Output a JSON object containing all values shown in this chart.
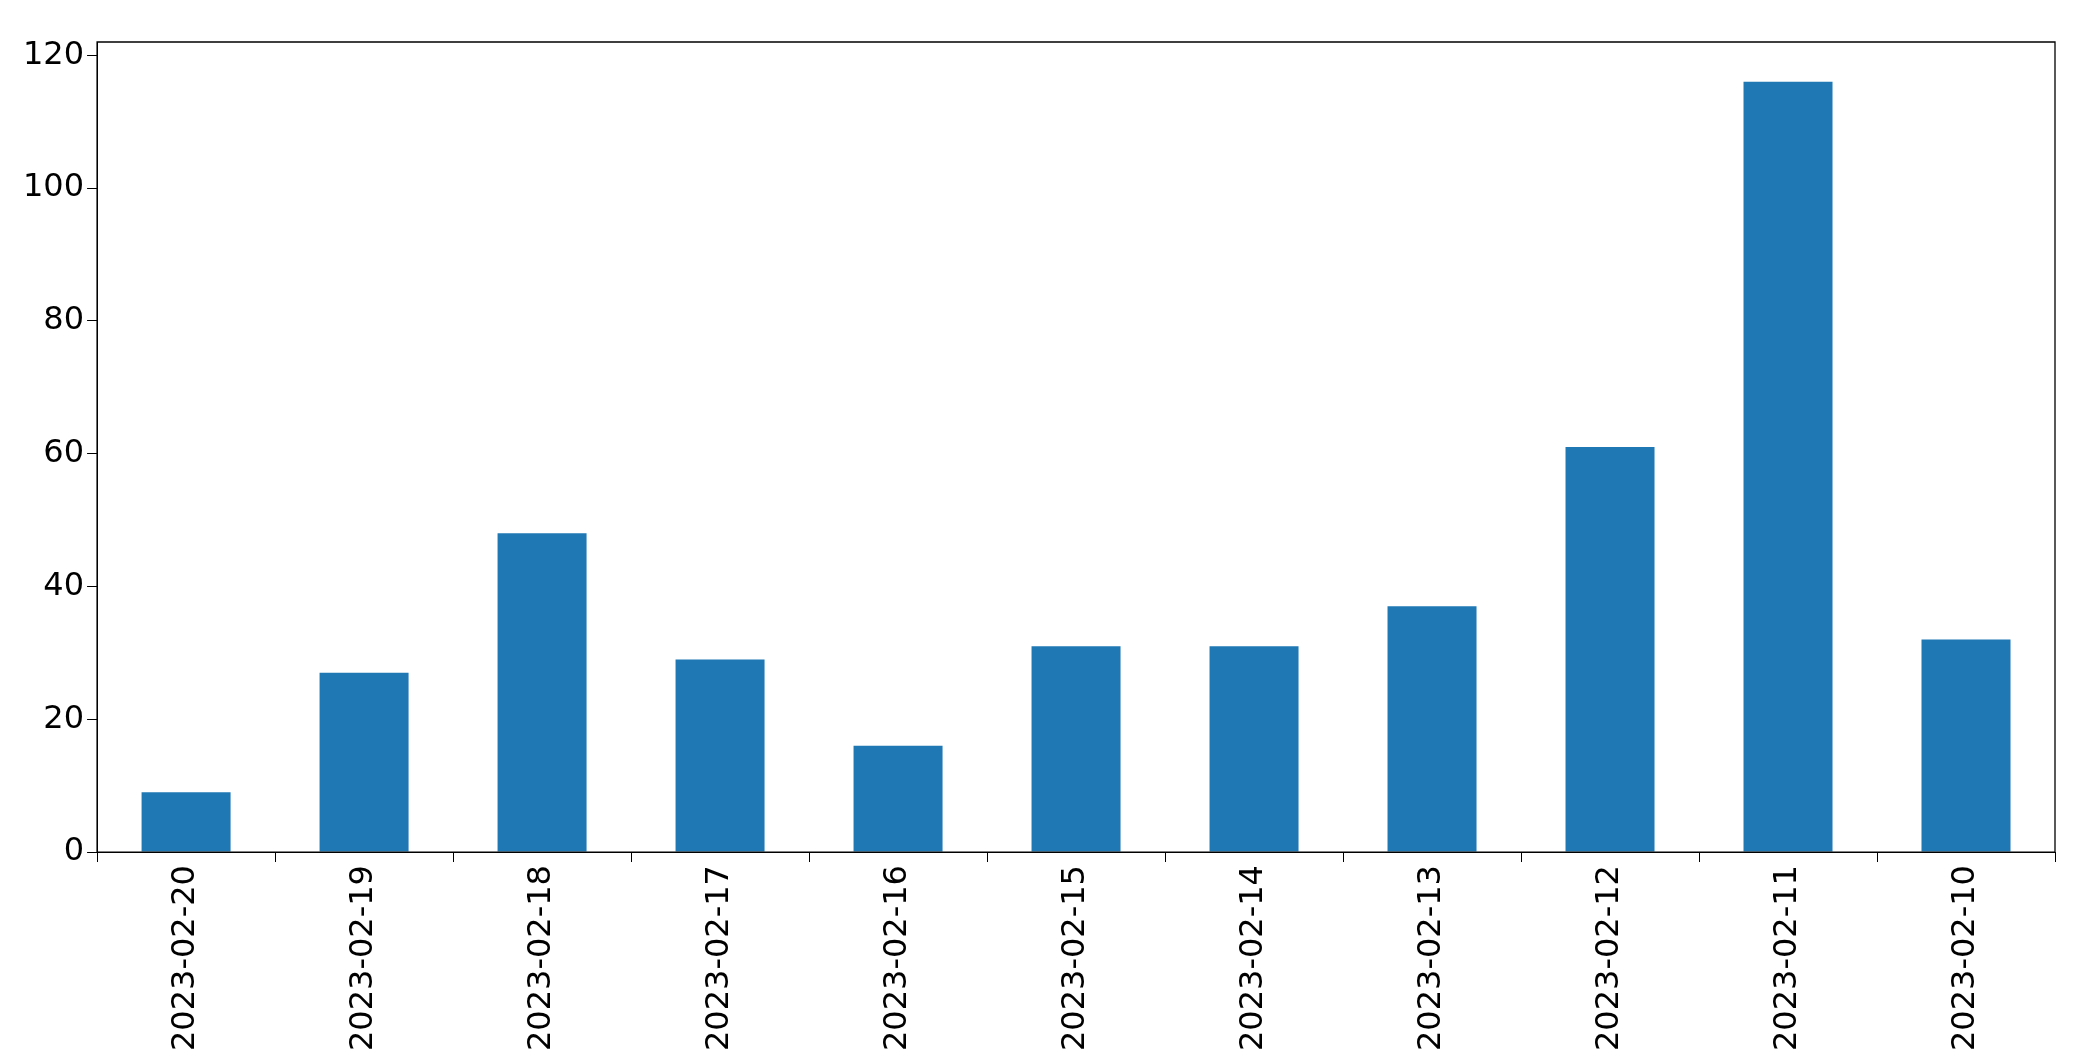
{
  "chart_data": {
    "type": "bar",
    "categories": [
      "2023-02-20",
      "2023-02-19",
      "2023-02-18",
      "2023-02-17",
      "2023-02-16",
      "2023-02-15",
      "2023-02-14",
      "2023-02-13",
      "2023-02-12",
      "2023-02-11",
      "2023-02-10"
    ],
    "values": [
      9,
      27,
      48,
      29,
      16,
      31,
      31,
      37,
      61,
      116,
      32
    ],
    "color": "#1f77b4",
    "ylim": [
      0,
      122
    ],
    "yticks": [
      0,
      20,
      40,
      60,
      80,
      100,
      120
    ],
    "grid": false,
    "legend": false
  }
}
